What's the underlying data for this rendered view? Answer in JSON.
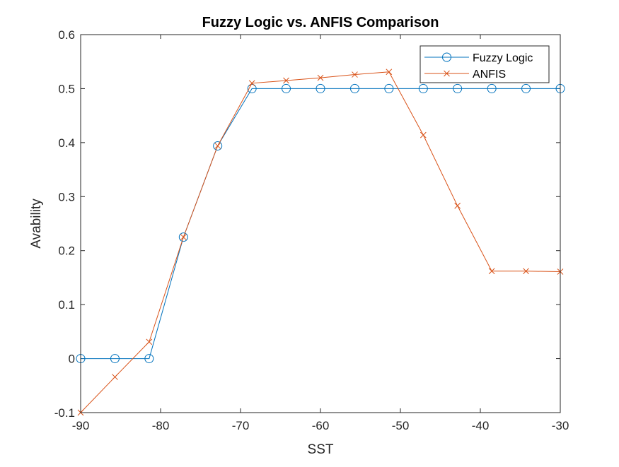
{
  "chart_data": {
    "type": "line",
    "title": "Fuzzy Logic vs. ANFIS Comparison",
    "xlabel": "SST",
    "ylabel": "Avability",
    "xlim": [
      -90,
      -30
    ],
    "ylim": [
      -0.1,
      0.6
    ],
    "xticks": [
      -90,
      -80,
      -70,
      -60,
      -50,
      -40,
      -30
    ],
    "xtick_labels": [
      "-90",
      "-80",
      "-70",
      "-60",
      "-50",
      "-40",
      "-30"
    ],
    "yticks": [
      -0.1,
      0,
      0.1,
      0.2,
      0.3,
      0.4,
      0.5,
      0.6
    ],
    "ytick_labels": [
      "-0.1",
      "0",
      "0.1",
      "0.2",
      "0.3",
      "0.4",
      "0.5",
      "0.6"
    ],
    "grid": false,
    "legend_position": "top-right",
    "x": [
      -90,
      -85.71,
      -81.43,
      -77.14,
      -72.86,
      -68.57,
      -64.29,
      -60,
      -55.71,
      -51.43,
      -47.14,
      -42.86,
      -38.57,
      -34.29,
      -30
    ],
    "series": [
      {
        "name": "Fuzzy Logic",
        "color": "#0072BD",
        "marker": "circle",
        "values": [
          0,
          0,
          0,
          0.225,
          0.394,
          0.5,
          0.5,
          0.5,
          0.5,
          0.5,
          0.5,
          0.5,
          0.5,
          0.5,
          0.5
        ]
      },
      {
        "name": "ANFIS",
        "color": "#D95319",
        "marker": "x",
        "values": [
          -0.1,
          -0.034,
          0.031,
          0.225,
          0.394,
          0.51,
          0.515,
          0.52,
          0.526,
          0.531,
          0.414,
          0.283,
          0.162,
          0.162,
          0.161
        ]
      }
    ]
  }
}
